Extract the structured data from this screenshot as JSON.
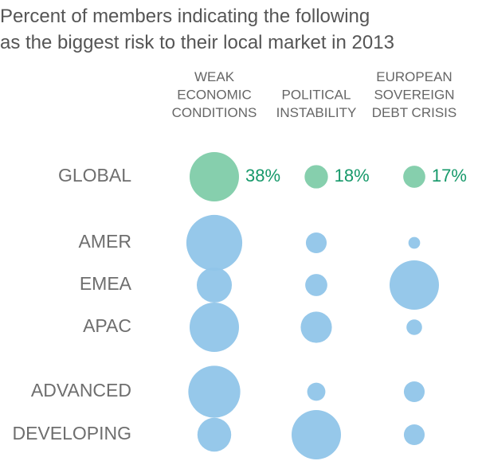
{
  "chart_data": {
    "type": "bubble",
    "title": "Percent of members indicating the following\nas the biggest risk to their local market in 2013",
    "categories": [
      "GLOBAL",
      "AMER",
      "EMEA",
      "APAC",
      "ADVANCED",
      "DEVELOPING"
    ],
    "highlight_color": "#80cca9",
    "color": "#90c5e9",
    "series": [
      {
        "name": "WEAK\nECONOMIC\nCONDITIONS",
        "values": [
          38,
          43,
          27,
          38,
          40,
          26
        ],
        "value_labels": [
          "38%",
          null,
          null,
          null,
          null,
          null
        ]
      },
      {
        "name": "POLITICAL\nINSTABILITY",
        "values": [
          18,
          16,
          17,
          24,
          14,
          38
        ],
        "value_labels": [
          "18%",
          null,
          null,
          null,
          null,
          null
        ]
      },
      {
        "name": "EUROPEAN\nSOVEREIGN\nDEBT CRISIS",
        "values": [
          17,
          9,
          38,
          12,
          16,
          16
        ],
        "value_labels": [
          "17%",
          null,
          null,
          null,
          null,
          null
        ]
      }
    ]
  }
}
